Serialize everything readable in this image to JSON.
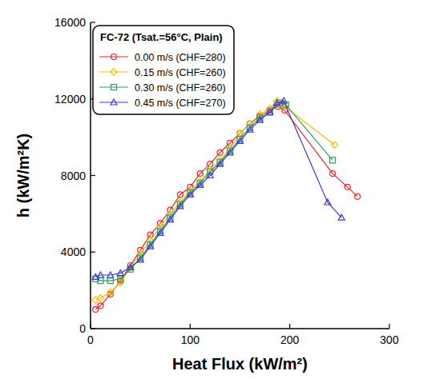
{
  "chart_data": {
    "type": "line",
    "legend_title": "FC-72 (Tsat.=56°C, Plain)",
    "x_label": "Heat Flux (kW/m²)",
    "y_label": "h (kW/m²K)",
    "xlim": [
      0,
      300
    ],
    "xticks": [
      0,
      100,
      200,
      300
    ],
    "ylim": [
      0,
      16000
    ],
    "yticks": [
      0,
      4000,
      8000,
      12000,
      16000
    ],
    "grid": false,
    "legend": "upper left",
    "series": [
      {
        "name": "0.00 m/s (CHF=280)",
        "color": "#e8262a",
        "marker": "circle",
        "line_style": "solid",
        "x": [
          5,
          10,
          20,
          30,
          40,
          50,
          60,
          70,
          80,
          90,
          100,
          110,
          120,
          130,
          140,
          150,
          160,
          170,
          180,
          188,
          195,
          243,
          258,
          268
        ],
        "values": [
          1000,
          1200,
          1800,
          2500,
          3300,
          4100,
          4900,
          5500,
          6200,
          7000,
          7400,
          8100,
          8600,
          9200,
          9700,
          10200,
          10700,
          11100,
          11400,
          11600,
          11400,
          8100,
          7400,
          6900
        ]
      },
      {
        "name": "0.15 m/s (CHF=260)",
        "color": "#f2c200",
        "marker": "diamond",
        "line_style": "solid",
        "x": [
          5,
          10,
          20,
          30,
          40,
          50,
          60,
          70,
          80,
          90,
          100,
          110,
          120,
          130,
          140,
          150,
          160,
          170,
          180,
          187,
          195,
          245
        ],
        "values": [
          1500,
          1600,
          1900,
          2400,
          3200,
          3900,
          4600,
          5300,
          6000,
          6600,
          7200,
          7700,
          8300,
          8800,
          9400,
          10200,
          10700,
          11200,
          11500,
          11900,
          11600,
          9600
        ]
      },
      {
        "name": "0.30 m/s (CHF=260)",
        "color": "#2e9a5a",
        "marker": "square",
        "line_style": "solid",
        "x": [
          5,
          10,
          20,
          30,
          40,
          50,
          60,
          70,
          80,
          90,
          100,
          110,
          120,
          130,
          140,
          150,
          160,
          170,
          180,
          190,
          196,
          243
        ],
        "values": [
          2600,
          2500,
          2500,
          2600,
          3100,
          3700,
          4400,
          5100,
          5800,
          6500,
          7100,
          7600,
          8200,
          8700,
          9300,
          9900,
          10500,
          11000,
          11300,
          11800,
          11700,
          8800
        ]
      },
      {
        "name": "0.45 m/s (CHF=270)",
        "color": "#3b3bd6",
        "marker": "triangle",
        "line_style": "solid",
        "x": [
          5,
          10,
          20,
          30,
          40,
          50,
          60,
          70,
          80,
          90,
          100,
          110,
          120,
          130,
          140,
          150,
          160,
          170,
          180,
          187,
          194,
          238,
          252
        ],
        "values": [
          2700,
          2800,
          2800,
          2900,
          3200,
          3600,
          4300,
          5000,
          5700,
          6400,
          7000,
          7500,
          8000,
          8600,
          9200,
          9800,
          10400,
          10900,
          11300,
          11800,
          11900,
          6600,
          5800
        ]
      }
    ]
  }
}
